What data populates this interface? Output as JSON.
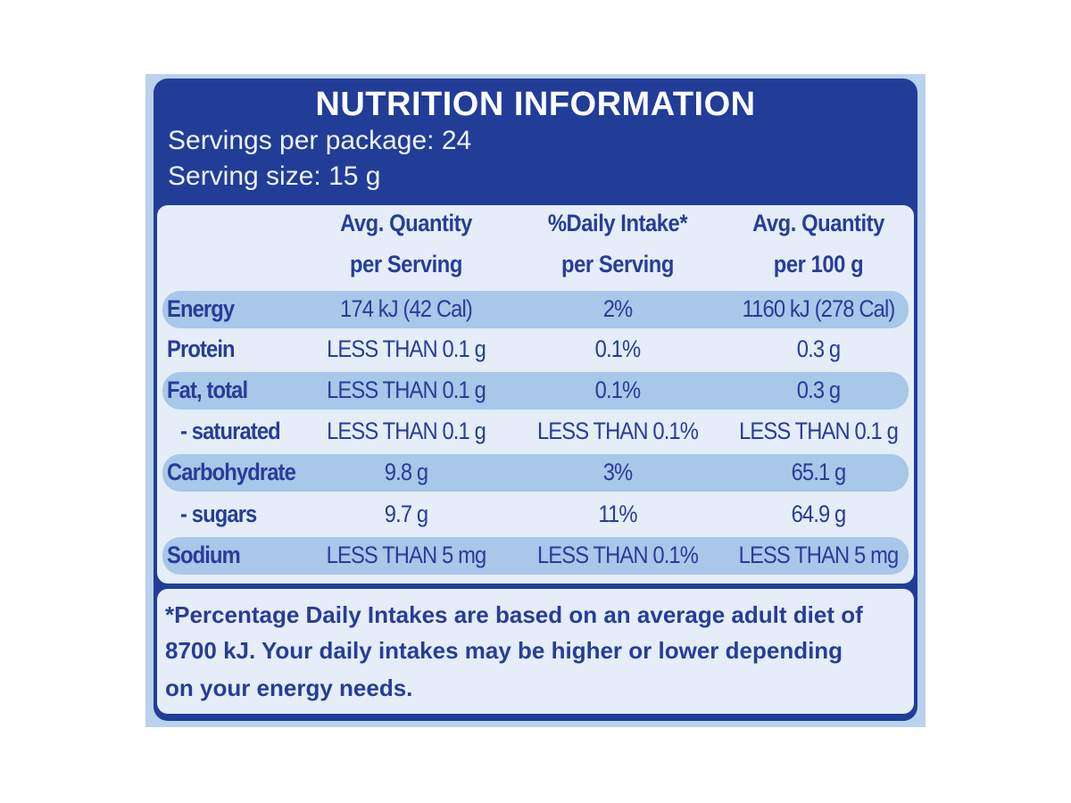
{
  "header": {
    "title": "NUTRITION INFORMATION",
    "servings": "Servings per package: 24",
    "serving_size": "Serving size: 15 g"
  },
  "table": {
    "columns": [
      [
        "Avg. Quantity",
        "per Serving"
      ],
      [
        "%Daily Intake*",
        "per Serving"
      ],
      [
        "Avg. Quantity",
        "per 100 g"
      ]
    ],
    "rows": [
      [
        "Energy",
        "174 kJ (42 Cal)",
        "2%",
        "1160 kJ (278 Cal)"
      ],
      [
        "Protein",
        "LESS THAN 0.1 g",
        "0.1%",
        "0.3 g"
      ],
      [
        "Fat, total",
        "LESS THAN 0.1 g",
        "0.1%",
        "0.3 g"
      ],
      [
        "- saturated",
        "LESS THAN 0.1 g",
        "LESS THAN 0.1%",
        "LESS THAN 0.1 g"
      ],
      [
        "Carbohydrate",
        "9.8 g",
        "3%",
        "65.1 g"
      ],
      [
        "- sugars",
        "9.7 g",
        "11%",
        "64.9 g"
      ],
      [
        "Sodium",
        "LESS THAN 5 mg",
        "LESS THAN 0.1%",
        "LESS THAN 5 mg"
      ]
    ]
  },
  "footnote": [
    "*Percentage Daily Intakes are based on an average adult diet of",
    "8700 kJ. Your daily intakes may be higher or lower depending",
    "on your energy needs."
  ]
}
